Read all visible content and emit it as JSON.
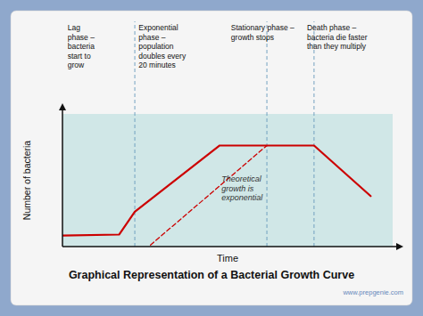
{
  "chart_data": {
    "type": "line",
    "title": "Graphical Representation of a Bacterial Growth Curve",
    "x_label": "Time",
    "y_label": "Number of bacteria",
    "xlim": [
      0,
      10.5
    ],
    "ylim": [
      0,
      4.2
    ],
    "tick_labels": false,
    "grid": false,
    "series": [
      {
        "x": [
          0.0,
          1.8,
          2.3,
          5.0,
          6.5,
          8.0,
          9.8
        ],
        "values": [
          0.35,
          0.38,
          1.1,
          3.2,
          3.2,
          3.2,
          1.6
        ],
        "color": "#cc0000",
        "line_style": "solid"
      },
      {
        "x": [
          2.8,
          6.5
        ],
        "values": [
          0.05,
          3.2
        ],
        "color": "#cc0000",
        "line_style": "dashed"
      }
    ],
    "phase_boundaries": [
      2.3,
      6.5,
      8.0
    ],
    "phase_labels": [
      "Lag\nphase –\nbacteria\nstart to\ngrow",
      "Exponential\nphase –\npopulation\ndoubles every\n20 minutes",
      "Stationary phase –\ngrowth stops",
      "Death phase –\nbacteria die faster\nthan they multiply"
    ],
    "annotations": [
      {
        "x": 5.0,
        "y": 2.3,
        "text": "Theoretical\ngrowth is\nexponential"
      }
    ],
    "watermark": "www.prepgenie.com"
  }
}
